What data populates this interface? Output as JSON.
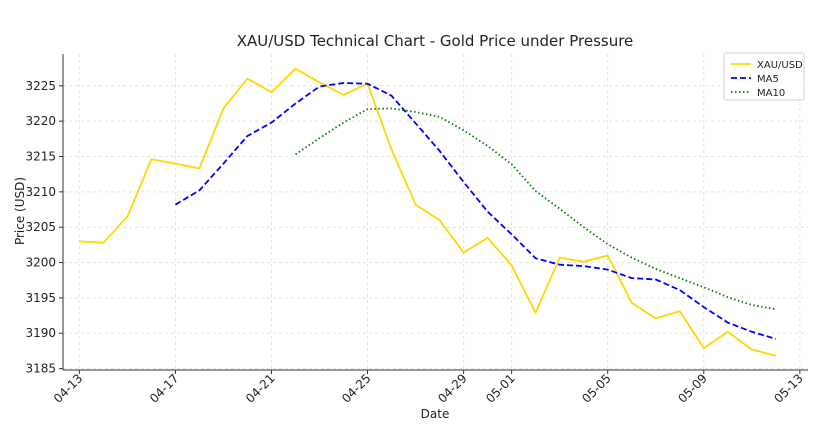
{
  "chart_data": {
    "type": "line",
    "title": "XAU/USD Technical Chart - Gold Price under Pressure",
    "xlabel": "Date",
    "ylabel": "Price (USD)",
    "x_start": "2025-04-13",
    "x_end": "2025-05-13",
    "xlim": [
      "2025-04-12",
      "2025-05-13"
    ],
    "ylim": [
      3184.8,
      3229.5
    ],
    "x_ticks": [
      "04-13",
      "04-17",
      "04-21",
      "04-25",
      "04-29",
      "05-01",
      "05-05",
      "05-09",
      "05-13"
    ],
    "y_ticks": [
      3185,
      3190,
      3195,
      3200,
      3205,
      3210,
      3215,
      3220,
      3225
    ],
    "grid": true,
    "legend_position": "top-right",
    "series": [
      {
        "name": "XAU/USD",
        "color": "#FFD700",
        "style": "solid",
        "x": [
          "2025-04-13",
          "2025-04-14",
          "2025-04-15",
          "2025-04-16",
          "2025-04-17",
          "2025-04-18",
          "2025-04-19",
          "2025-04-20",
          "2025-04-21",
          "2025-04-22",
          "2025-04-23",
          "2025-04-24",
          "2025-04-25",
          "2025-04-26",
          "2025-04-27",
          "2025-04-28",
          "2025-04-29",
          "2025-04-30",
          "2025-05-01",
          "2025-05-02",
          "2025-05-03",
          "2025-05-04",
          "2025-05-05",
          "2025-05-06",
          "2025-05-07",
          "2025-05-08",
          "2025-05-09",
          "2025-05-10",
          "2025-05-11",
          "2025-05-12"
        ],
        "values": [
          3203.0,
          3202.8,
          3206.5,
          3214.6,
          3214.0,
          3213.3,
          3221.8,
          3226.0,
          3224.1,
          3227.4,
          3225.5,
          3223.7,
          3225.3,
          3216.0,
          3208.2,
          3206.0,
          3201.4,
          3203.5,
          3199.6,
          3192.9,
          3200.7,
          3200.1,
          3201.0,
          3194.3,
          3192.1,
          3193.1,
          3187.9,
          3190.2,
          3187.7,
          3186.8
        ]
      },
      {
        "name": "MA5",
        "color": "#0000FF",
        "style": "dashed",
        "x": [
          "2025-04-17",
          "2025-04-18",
          "2025-04-19",
          "2025-04-20",
          "2025-04-21",
          "2025-04-22",
          "2025-04-23",
          "2025-04-24",
          "2025-04-25",
          "2025-04-26",
          "2025-04-27",
          "2025-04-28",
          "2025-04-29",
          "2025-04-30",
          "2025-05-01",
          "2025-05-02",
          "2025-05-03",
          "2025-05-04",
          "2025-05-05",
          "2025-05-06",
          "2025-05-07",
          "2025-05-08",
          "2025-05-09",
          "2025-05-10",
          "2025-05-11",
          "2025-05-12"
        ],
        "values": [
          3208.2,
          3210.2,
          3214.0,
          3217.9,
          3219.8,
          3222.5,
          3224.9,
          3225.4,
          3225.3,
          3223.6,
          3219.7,
          3215.8,
          3211.4,
          3207.2,
          3204.0,
          3200.6,
          3199.7,
          3199.5,
          3199.0,
          3197.8,
          3197.6,
          3196.1,
          3193.7,
          3191.5,
          3190.2,
          3189.2
        ]
      },
      {
        "name": "MA10",
        "color": "#008000",
        "style": "dotted",
        "x": [
          "2025-04-22",
          "2025-04-23",
          "2025-04-24",
          "2025-04-25",
          "2025-04-26",
          "2025-04-27",
          "2025-04-28",
          "2025-04-29",
          "2025-04-30",
          "2025-05-01",
          "2025-05-02",
          "2025-05-03",
          "2025-05-04",
          "2025-05-05",
          "2025-05-06",
          "2025-05-07",
          "2025-05-08",
          "2025-05-09",
          "2025-05-10",
          "2025-05-11",
          "2025-05-12"
        ],
        "values": [
          3215.3,
          3217.6,
          3219.8,
          3221.7,
          3221.8,
          3221.3,
          3220.6,
          3218.7,
          3216.5,
          3213.9,
          3210.1,
          3207.6,
          3205.0,
          3202.6,
          3200.7,
          3199.1,
          3197.8,
          3196.5,
          3195.1,
          3194.0,
          3193.4
        ]
      }
    ]
  }
}
